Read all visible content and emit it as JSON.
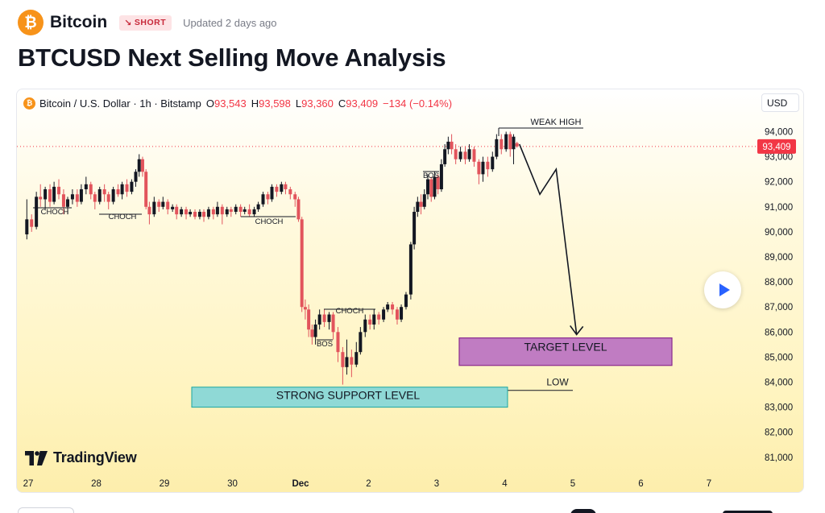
{
  "header": {
    "symbol_name": "Bitcoin",
    "logo_glyph": "₿",
    "badge_label": "SHORT",
    "badge_icon": "arrow-down-right-icon",
    "updated": "Updated 2 days ago"
  },
  "title": "BTCUSD Next Selling Move Analysis",
  "legend": {
    "instrument": "Bitcoin / U.S. Dollar · 1h · Bitstamp",
    "open_key": "O",
    "open": "93,543",
    "high_key": "H",
    "high": "93,598",
    "low_key": "L",
    "low": "93,360",
    "close_key": "C",
    "close": "93,409",
    "change": "−134 (−0.14%)"
  },
  "currency": "USD",
  "branding": "TradingView",
  "colors": {
    "up": "#131722",
    "down": "#e2545c",
    "accent_btc": "#f7931a",
    "support_fill": "#8fd9d6",
    "support_stroke": "#1aa6a0",
    "target_fill": "#c07cc2",
    "target_stroke": "#8a2b8e",
    "price_tag": "#f23645"
  },
  "chart_data": {
    "type": "candlestick",
    "x_labels": [
      "27",
      "28",
      "29",
      "30",
      "Dec",
      "2",
      "3",
      "4",
      "5",
      "6",
      "7"
    ],
    "y_ticks": [
      "94,000",
      "93,000",
      "92,000",
      "91,000",
      "90,000",
      "89,000",
      "88,000",
      "87,000",
      "86,000",
      "85,000",
      "84,000",
      "83,000",
      "82,000",
      "81,000"
    ],
    "y_tick_values": [
      94000,
      93000,
      92000,
      91000,
      90000,
      89000,
      88000,
      87000,
      86000,
      85000,
      84000,
      83000,
      82000,
      81000
    ],
    "ylim": [
      80300,
      95300
    ],
    "xlim": [
      26.85,
      7.95
    ],
    "last_price": 93409,
    "last_price_label": "93,409",
    "series": [
      [
        26.98,
        89900,
        90500,
        91300,
        89700
      ],
      [
        27.05,
        90500,
        90200,
        90700,
        90000
      ],
      [
        27.12,
        90200,
        91400,
        91600,
        90100
      ],
      [
        27.18,
        91400,
        91300,
        91900,
        91000
      ],
      [
        27.25,
        91300,
        91700,
        91800,
        90900
      ],
      [
        27.32,
        91700,
        91200,
        91900,
        91000
      ],
      [
        27.38,
        91200,
        91800,
        92000,
        91100
      ],
      [
        27.45,
        91800,
        91500,
        92100,
        91300
      ],
      [
        27.52,
        91500,
        91000,
        91700,
        90700
      ],
      [
        27.58,
        91000,
        91300,
        91400,
        90700
      ],
      [
        27.65,
        91300,
        91500,
        91700,
        91100
      ],
      [
        27.72,
        91500,
        91200,
        91700,
        91000
      ],
      [
        27.78,
        91200,
        91700,
        91900,
        91100
      ],
      [
        27.85,
        91700,
        91900,
        92200,
        91500
      ],
      [
        27.92,
        91900,
        91500,
        92000,
        91300
      ],
      [
        27.98,
        91500,
        91200,
        91600,
        90900
      ],
      [
        28.05,
        91200,
        91700,
        91800,
        91100
      ],
      [
        28.12,
        91700,
        91500,
        91900,
        91200
      ],
      [
        28.18,
        91500,
        91200,
        91600,
        90900
      ],
      [
        28.25,
        91200,
        91700,
        91800,
        91100
      ],
      [
        28.32,
        91700,
        91500,
        91900,
        91400
      ],
      [
        28.38,
        91500,
        91900,
        92000,
        91300
      ],
      [
        28.45,
        91900,
        91600,
        92100,
        91400
      ],
      [
        28.52,
        91600,
        92000,
        92100,
        91500
      ],
      [
        28.58,
        92000,
        92400,
        92500,
        91800
      ],
      [
        28.63,
        92400,
        92900,
        93100,
        92200
      ],
      [
        28.68,
        92900,
        92400,
        93000,
        92200
      ],
      [
        28.73,
        92400,
        91000,
        92500,
        90900
      ],
      [
        28.78,
        91000,
        90700,
        91200,
        90300
      ],
      [
        28.85,
        90700,
        91200,
        91400,
        90600
      ],
      [
        28.92,
        91200,
        91000,
        91300,
        90800
      ],
      [
        28.98,
        91000,
        91200,
        91400,
        90900
      ],
      [
        29.05,
        91200,
        90900,
        91300,
        90700
      ],
      [
        29.12,
        90900,
        91000,
        91100,
        90800
      ],
      [
        29.18,
        91000,
        90700,
        91100,
        90500
      ],
      [
        29.25,
        90700,
        90900,
        91000,
        90600
      ],
      [
        29.32,
        90900,
        90700,
        91000,
        90500
      ],
      [
        29.38,
        90700,
        90800,
        90900,
        90600
      ],
      [
        29.45,
        90800,
        90600,
        90900,
        90500
      ],
      [
        29.52,
        90600,
        90800,
        90900,
        90500
      ],
      [
        29.58,
        90800,
        90600,
        90900,
        90400
      ],
      [
        29.65,
        90600,
        90900,
        91000,
        90500
      ],
      [
        29.72,
        90900,
        90700,
        91000,
        90500
      ],
      [
        29.78,
        90700,
        91000,
        91200,
        90600
      ],
      [
        29.85,
        91000,
        90700,
        91100,
        90300
      ],
      [
        29.92,
        90700,
        90900,
        91000,
        90600
      ],
      [
        29.98,
        90900,
        90800,
        91000,
        90600
      ],
      [
        30.05,
        90800,
        91000,
        91100,
        90700
      ],
      [
        30.12,
        91000,
        90800,
        91100,
        90600
      ],
      [
        30.18,
        90800,
        90900,
        91000,
        90700
      ],
      [
        30.25,
        90900,
        90700,
        91100,
        90600
      ],
      [
        30.32,
        90700,
        90900,
        91000,
        90600
      ],
      [
        30.38,
        90900,
        91100,
        91200,
        90800
      ],
      [
        30.45,
        91100,
        91500,
        91600,
        91000
      ],
      [
        30.52,
        91500,
        91300,
        91600,
        91100
      ],
      [
        30.58,
        91300,
        91800,
        91900,
        91200
      ],
      [
        30.65,
        91800,
        91600,
        91900,
        91400
      ],
      [
        30.72,
        91600,
        91900,
        92000,
        91500
      ],
      [
        30.78,
        91900,
        91700,
        92000,
        91500
      ],
      [
        30.85,
        91700,
        91500,
        91800,
        91300
      ],
      [
        30.92,
        91500,
        91300,
        91600,
        91000
      ],
      [
        30.97,
        91300,
        90500,
        91400,
        90400
      ],
      [
        31.02,
        90500,
        87000,
        90600,
        86800
      ],
      [
        31.07,
        87000,
        86900,
        87300,
        86500
      ],
      [
        31.12,
        86900,
        86100,
        87100,
        85800
      ],
      [
        31.17,
        86100,
        85800,
        86300,
        85500
      ],
      [
        31.22,
        85800,
        86300,
        86500,
        85500
      ],
      [
        31.28,
        86300,
        86700,
        86900,
        86100
      ],
      [
        31.35,
        86700,
        86400,
        86900,
        86200
      ],
      [
        31.42,
        86400,
        86700,
        86800,
        86100
      ],
      [
        31.48,
        86700,
        86000,
        86800,
        85700
      ],
      [
        31.55,
        86000,
        85200,
        86200,
        84800
      ],
      [
        31.62,
        85200,
        84600,
        85400,
        83900
      ],
      [
        31.68,
        84600,
        85000,
        85700,
        84300
      ],
      [
        31.75,
        85000,
        84700,
        85300,
        84200
      ],
      [
        31.82,
        84700,
        85200,
        85600,
        84600
      ],
      [
        31.88,
        85200,
        86000,
        86200,
        85100
      ],
      [
        31.95,
        86000,
        86500,
        86700,
        85800
      ],
      [
        32.02,
        86500,
        86300,
        86700,
        86100
      ],
      [
        32.08,
        86300,
        86700,
        86900,
        86100
      ],
      [
        32.15,
        86700,
        86500,
        86800,
        86300
      ],
      [
        32.22,
        86500,
        86900,
        87000,
        86400
      ],
      [
        32.28,
        86900,
        87100,
        87200,
        86800
      ],
      [
        32.35,
        87100,
        86900,
        87200,
        86700
      ],
      [
        32.42,
        86900,
        86500,
        87000,
        86300
      ],
      [
        32.48,
        86500,
        87000,
        87100,
        86400
      ],
      [
        32.55,
        87000,
        87500,
        87600,
        86900
      ],
      [
        32.62,
        87500,
        89500,
        89600,
        87300
      ],
      [
        32.67,
        89500,
        90800,
        91000,
        89300
      ],
      [
        32.72,
        90800,
        91200,
        91400,
        90600
      ],
      [
        32.77,
        91200,
        91000,
        91500,
        90700
      ],
      [
        32.82,
        91000,
        91500,
        91700,
        90900
      ],
      [
        32.87,
        91500,
        92100,
        92300,
        91300
      ],
      [
        32.92,
        92100,
        91400,
        92200,
        91200
      ],
      [
        32.97,
        91400,
        92200,
        92400,
        91300
      ],
      [
        33.02,
        92200,
        91700,
        92300,
        91500
      ],
      [
        33.07,
        91700,
        92700,
        92900,
        91600
      ],
      [
        33.12,
        92700,
        93300,
        93500,
        92600
      ],
      [
        33.17,
        93300,
        93600,
        93800,
        93100
      ],
      [
        33.22,
        93600,
        93300,
        93900,
        93100
      ],
      [
        33.28,
        93300,
        92900,
        93500,
        92700
      ],
      [
        33.35,
        92900,
        93200,
        93400,
        92800
      ],
      [
        33.42,
        93200,
        92900,
        93400,
        92700
      ],
      [
        33.48,
        92900,
        93300,
        93500,
        92800
      ],
      [
        33.55,
        93300,
        92800,
        93400,
        92600
      ],
      [
        33.62,
        92800,
        92300,
        92900,
        91900
      ],
      [
        33.68,
        92300,
        92800,
        93000,
        92000
      ],
      [
        33.75,
        92800,
        92500,
        93000,
        92200
      ],
      [
        33.82,
        92500,
        93000,
        93200,
        92400
      ],
      [
        33.88,
        93000,
        93700,
        93900,
        92900
      ],
      [
        33.95,
        93700,
        93300,
        93900,
        93100
      ],
      [
        34.02,
        93300,
        93900,
        94000,
        93200
      ],
      [
        34.08,
        93900,
        93300,
        94000,
        93000
      ],
      [
        34.13,
        93300,
        93800,
        93900,
        92700
      ],
      [
        34.18,
        93543,
        93409,
        93598,
        93360
      ]
    ],
    "candles_note": "",
    "annotations": {
      "choch_1": "CHOCH",
      "choch_2": "CHOCH",
      "choch_3": "CHOCH",
      "choch_4": "CHOCH",
      "bos_1": "BOS",
      "bos_2": "BOS",
      "weak_high": "WEAK HIGH",
      "low": "LOW",
      "support_zone": "STRONG SUPPORT LEVEL",
      "target_zone": "TARGET LEVEL"
    },
    "support_zone_range": [
      83000,
      83800
    ],
    "target_zone_range": [
      84700,
      85700
    ],
    "projection_path": [
      [
        34.18,
        93500
      ],
      [
        34.48,
        91500
      ],
      [
        34.72,
        92500
      ],
      [
        35.02,
        85900
      ]
    ]
  }
}
